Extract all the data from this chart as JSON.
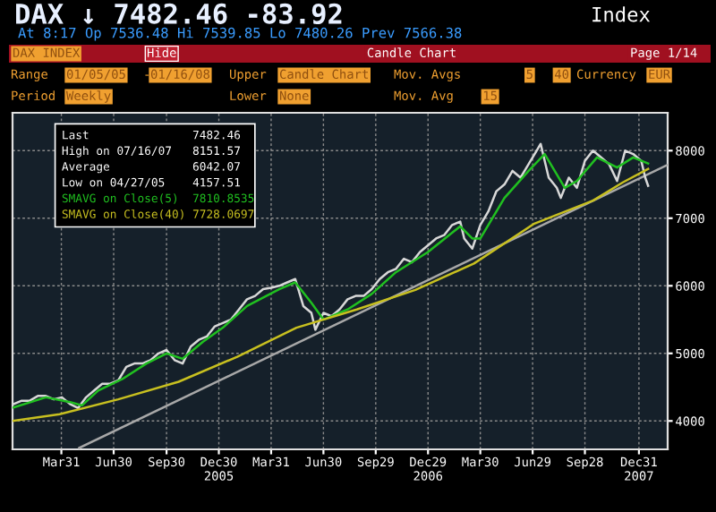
{
  "chart_data": {
    "type": "line",
    "title": "DAX ↓ 7482.46 -83.92",
    "subtitle": "At 8:17 Op 7536.48 Hi 7539.85 Lo 7480.26 Prev 7566.38",
    "annotations": [
      "Index",
      "DAX INDEX",
      "Hide",
      "Candle Chart",
      "Page 1/14",
      "Range",
      "01/05/05",
      "-",
      "01/16/08",
      "Upper",
      "Candle Chart",
      "Mov. Avgs",
      "5",
      "40",
      "Currency",
      "EUR",
      "Period",
      "Weekly",
      "Lower",
      "None",
      "Mov. Avg",
      "15",
      "Last",
      "7482.46",
      "High on 07/16/07",
      "8151.57",
      "Average",
      "6042.07",
      "Low on 04/27/05",
      "4157.51",
      "7810.8535",
      "7728.0697"
    ],
    "xlim": [
      "2005-01-05",
      "2008-02-19"
    ],
    "ylim": [
      3580,
      8560
    ],
    "yticks": [
      4000,
      5000,
      6000,
      7000,
      8000
    ],
    "xticks": [
      {
        "value": "2005-03-31",
        "label": "Mar31"
      },
      {
        "value": "2005-06-30",
        "label": "Jun30"
      },
      {
        "value": "2005-09-30",
        "label": "Sep30"
      },
      {
        "value": "2005-12-30",
        "label": "Dec30\n2005"
      },
      {
        "value": "2006-03-31",
        "label": "Mar31"
      },
      {
        "value": "2006-06-30",
        "label": "Jun30"
      },
      {
        "value": "2006-09-29",
        "label": "Sep29"
      },
      {
        "value": "2006-12-29",
        "label": "Dec29\n2006"
      },
      {
        "value": "2007-03-30",
        "label": "Mar30"
      },
      {
        "value": "2007-06-29",
        "label": "Jun29"
      },
      {
        "value": "2007-09-28",
        "label": "Sep28"
      },
      {
        "value": "2007-12-31",
        "label": "Dec31\n2007"
      }
    ],
    "grid": true,
    "series": [
      {
        "color": "#a8a8a8",
        "x": [
          "2005-05-01",
          "2008-02-19"
        ],
        "values": [
          3600,
          7790
        ]
      },
      {
        "color": "#d8d8d8",
        "x": [
          "2005-01-07",
          "2005-01-21",
          "2005-02-04",
          "2005-02-18",
          "2005-03-04",
          "2005-03-18",
          "2005-04-01",
          "2005-04-15",
          "2005-04-29",
          "2005-05-13",
          "2005-05-27",
          "2005-06-10",
          "2005-06-24",
          "2005-07-08",
          "2005-07-22",
          "2005-08-05",
          "2005-08-19",
          "2005-09-02",
          "2005-09-16",
          "2005-09-30",
          "2005-10-14",
          "2005-10-28",
          "2005-11-11",
          "2005-11-25",
          "2005-12-09",
          "2005-12-23",
          "2006-01-06",
          "2006-01-20",
          "2006-02-03",
          "2006-02-17",
          "2006-03-03",
          "2006-03-17",
          "2006-03-31",
          "2006-04-14",
          "2006-04-28",
          "2006-05-12",
          "2006-05-26",
          "2006-06-09",
          "2006-06-16",
          "2006-06-30",
          "2006-07-14",
          "2006-07-28",
          "2006-08-11",
          "2006-08-25",
          "2006-09-08",
          "2006-09-22",
          "2006-10-06",
          "2006-10-20",
          "2006-11-03",
          "2006-11-17",
          "2006-12-01",
          "2006-12-15",
          "2006-12-29",
          "2007-01-12",
          "2007-01-26",
          "2007-02-09",
          "2007-02-23",
          "2007-03-02",
          "2007-03-16",
          "2007-03-30",
          "2007-04-13",
          "2007-04-27",
          "2007-05-11",
          "2007-05-25",
          "2007-06-08",
          "2007-06-22",
          "2007-07-06",
          "2007-07-13",
          "2007-07-27",
          "2007-08-10",
          "2007-08-17",
          "2007-08-31",
          "2007-09-14",
          "2007-09-28",
          "2007-10-12",
          "2007-10-26",
          "2007-11-09",
          "2007-11-23",
          "2007-12-07",
          "2007-12-21",
          "2008-01-04",
          "2008-01-11",
          "2008-01-16"
        ],
        "values": [
          4250,
          4300,
          4300,
          4370,
          4370,
          4320,
          4350,
          4250,
          4190,
          4350,
          4450,
          4550,
          4550,
          4600,
          4800,
          4850,
          4850,
          4900,
          5000,
          5050,
          4900,
          4850,
          5100,
          5200,
          5250,
          5400,
          5450,
          5500,
          5650,
          5800,
          5850,
          5950,
          5970,
          6000,
          6050,
          6100,
          5700,
          5600,
          5350,
          5600,
          5550,
          5650,
          5800,
          5850,
          5850,
          5950,
          6100,
          6200,
          6250,
          6400,
          6350,
          6500,
          6600,
          6700,
          6750,
          6900,
          6950,
          6700,
          6550,
          6900,
          7100,
          7400,
          7500,
          7700,
          7600,
          7800,
          8000,
          8100,
          7600,
          7450,
          7300,
          7600,
          7450,
          7850,
          8000,
          7900,
          7800,
          7550,
          8000,
          7950,
          7850,
          7600,
          7480
        ]
      },
      {
        "name": "SMAVG on Close(5)",
        "color": "#20c020",
        "x": [
          "2005-01-07",
          "2005-03-04",
          "2005-04-15",
          "2005-05-06",
          "2005-06-03",
          "2005-07-15",
          "2005-08-26",
          "2005-09-30",
          "2005-10-28",
          "2005-12-02",
          "2006-01-06",
          "2006-02-17",
          "2006-04-14",
          "2006-05-12",
          "2006-06-09",
          "2006-06-30",
          "2006-08-11",
          "2006-09-22",
          "2006-11-03",
          "2006-12-29",
          "2007-02-23",
          "2007-03-16",
          "2007-03-30",
          "2007-05-11",
          "2007-06-22",
          "2007-07-20",
          "2007-08-24",
          "2007-09-14",
          "2007-10-19",
          "2007-11-23",
          "2007-12-21",
          "2008-01-16"
        ],
        "values": [
          4200,
          4350,
          4280,
          4230,
          4450,
          4620,
          4850,
          5000,
          4920,
          5170,
          5380,
          5700,
          5950,
          6050,
          5750,
          5500,
          5650,
          5880,
          6200,
          6500,
          6880,
          6700,
          6700,
          7300,
          7700,
          7950,
          7450,
          7550,
          7900,
          7750,
          7900,
          7810
        ]
      },
      {
        "name": "SMAVG on Close(40)",
        "color": "#c8c020",
        "x": [
          "2005-01-05",
          "2005-03-28",
          "2005-07-08",
          "2005-10-21",
          "2006-01-31",
          "2006-05-14",
          "2006-08-27",
          "2006-12-07",
          "2007-03-19",
          "2007-07-02",
          "2007-10-12",
          "2007-12-03",
          "2008-01-16"
        ],
        "values": [
          4000,
          4100,
          4320,
          4580,
          4950,
          5380,
          5650,
          5940,
          6330,
          6920,
          7260,
          7530,
          7730
        ]
      }
    ]
  }
}
